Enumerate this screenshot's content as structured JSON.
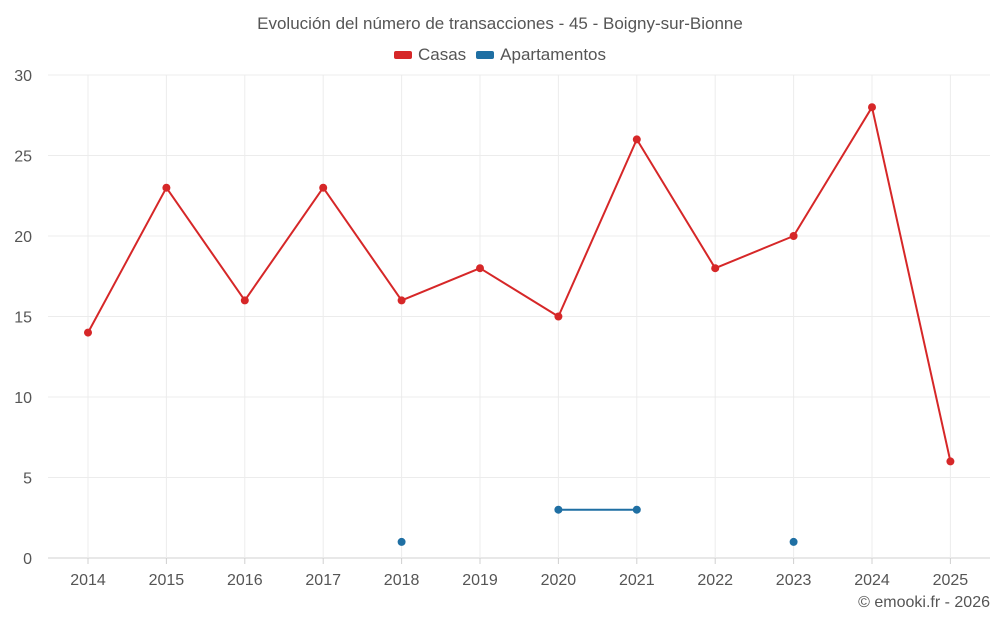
{
  "title": "Evolución del número de transacciones - 45 - Boigny-sur-Bionne",
  "footer": "© emooki.fr - 2026",
  "chart_data": {
    "type": "line",
    "title": "Evolución del número de transacciones - 45 - Boigny-sur-Bionne",
    "categories": [
      "2014",
      "2015",
      "2016",
      "2017",
      "2018",
      "2019",
      "2020",
      "2021",
      "2022",
      "2023",
      "2024",
      "2025"
    ],
    "series": [
      {
        "name": "Casas",
        "color": "#d62728",
        "values": [
          14,
          23,
          16,
          23,
          16,
          18,
          15,
          26,
          18,
          20,
          28,
          6
        ]
      },
      {
        "name": "Apartamentos",
        "color": "#1f6fa3",
        "values": [
          null,
          null,
          null,
          null,
          1,
          null,
          3,
          3,
          null,
          1,
          null,
          null
        ]
      }
    ],
    "ylim": [
      0,
      30
    ],
    "yticks": [
      0,
      5,
      10,
      15,
      20,
      25,
      30
    ],
    "grid": true,
    "legend": "top-center"
  }
}
